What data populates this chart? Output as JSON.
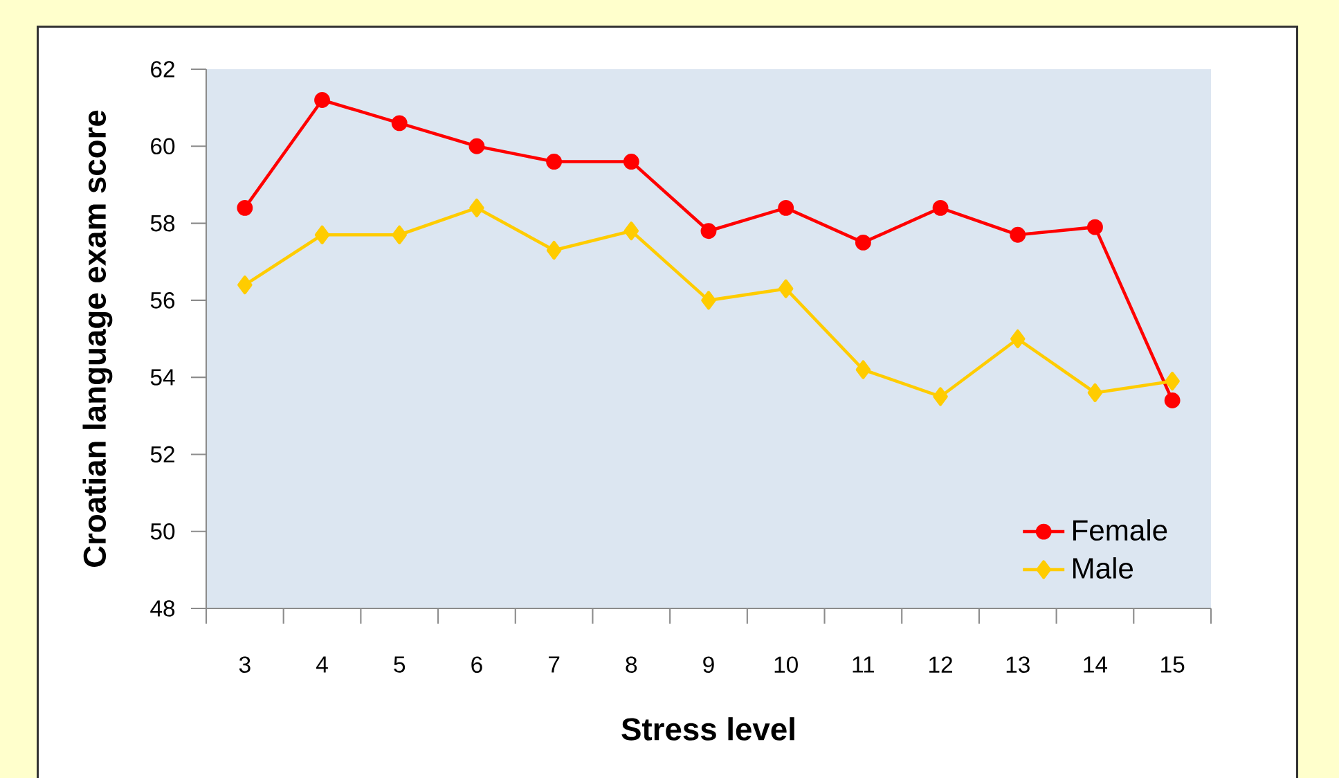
{
  "chart_data": {
    "type": "line",
    "xlabel": "Stress level",
    "ylabel": "Croatian language exam score",
    "categories": [
      "3",
      "4",
      "5",
      "6",
      "7",
      "8",
      "9",
      "10",
      "11",
      "12",
      "13",
      "14",
      "15"
    ],
    "series": [
      {
        "name": "Female",
        "color": "#ff0000",
        "marker": "circle",
        "values": [
          58.4,
          61.2,
          60.6,
          60.0,
          59.6,
          59.6,
          57.8,
          58.4,
          57.5,
          58.4,
          57.7,
          57.9,
          53.4
        ]
      },
      {
        "name": "Male",
        "color": "#ffcc00",
        "marker": "diamond",
        "values": [
          56.4,
          57.7,
          57.7,
          58.4,
          57.3,
          57.8,
          56.0,
          56.3,
          54.2,
          53.5,
          55.0,
          53.6,
          53.9
        ]
      }
    ],
    "ylim": [
      48,
      62
    ],
    "yticks": [
      48,
      50,
      52,
      54,
      56,
      58,
      60,
      62
    ],
    "grid": false,
    "legend": "bottom right",
    "line_style": "solid"
  }
}
